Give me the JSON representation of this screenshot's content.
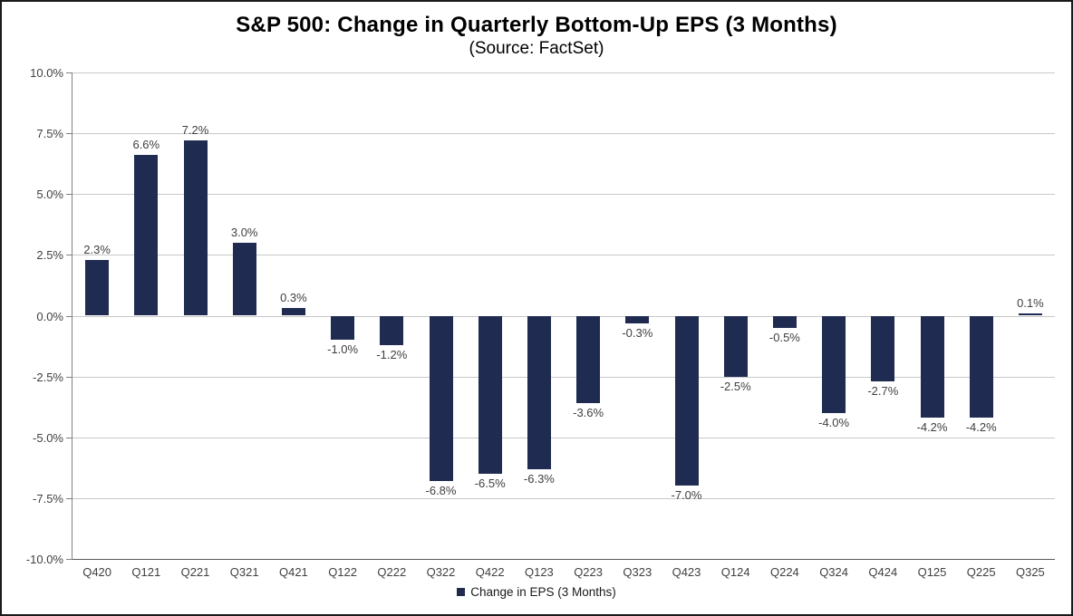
{
  "chart_data": {
    "type": "bar",
    "title": "S&P 500: Change in Quarterly Bottom-Up EPS (3 Months)",
    "subtitle": "(Source: FactSet)",
    "series_name": "Change in EPS (3 Months)",
    "categories": [
      "Q420",
      "Q121",
      "Q221",
      "Q321",
      "Q421",
      "Q122",
      "Q222",
      "Q322",
      "Q422",
      "Q123",
      "Q223",
      "Q323",
      "Q423",
      "Q124",
      "Q224",
      "Q324",
      "Q424",
      "Q125",
      "Q225",
      "Q325"
    ],
    "values": [
      2.3,
      6.6,
      7.2,
      3.0,
      0.3,
      -1.0,
      -1.2,
      -6.8,
      -6.5,
      -6.3,
      -3.6,
      -0.3,
      -7.0,
      -2.5,
      -0.5,
      -4.0,
      -2.7,
      -4.2,
      -4.2,
      0.1
    ],
    "data_labels": [
      "2.3%",
      "6.6%",
      "7.2%",
      "3.0%",
      "0.3%",
      "-1.0%",
      "-1.2%",
      "-6.8%",
      "-6.5%",
      "-6.3%",
      "-3.6%",
      "-0.3%",
      "-7.0%",
      "-2.5%",
      "-0.5%",
      "-4.0%",
      "-2.7%",
      "-4.2%",
      "-4.2%",
      "0.1%"
    ],
    "xlabel": "",
    "ylabel": "",
    "ylim": [
      -10,
      10
    ],
    "ytick_step": 2.5,
    "yticks": [
      "10.0%",
      "7.5%",
      "5.0%",
      "2.5%",
      "0.0%",
      "-2.5%",
      "-5.0%",
      "-7.5%",
      "-10.0%"
    ],
    "ytick_values": [
      10,
      7.5,
      5,
      2.5,
      0,
      -2.5,
      -5,
      -7.5,
      -10
    ],
    "grid": true,
    "legend_position": "bottom",
    "colors": {
      "bar": "#1f2b50",
      "gridline": "#c8c8c8",
      "axis": "#595959",
      "tick_label": "#404040",
      "data_label": "#404040",
      "title": "#000000"
    }
  }
}
